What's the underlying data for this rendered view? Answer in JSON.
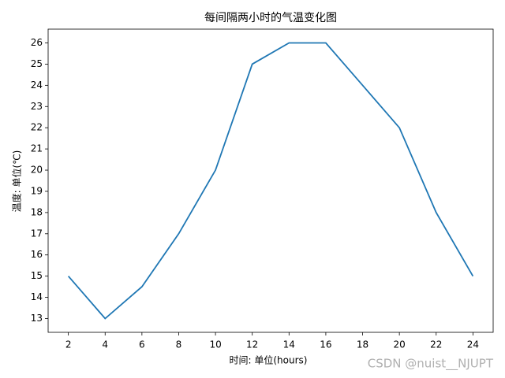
{
  "chart_data": {
    "type": "line",
    "title": "每间隔两小时的气温变化图",
    "xlabel": "时间: 单位(hours)",
    "ylabel": "温度: 单位(℃)",
    "x": [
      2,
      4,
      6,
      8,
      10,
      12,
      14,
      16,
      18,
      20,
      22,
      24
    ],
    "series": [
      {
        "color": "#1f77b4",
        "values": [
          15,
          13,
          14.5,
          17,
          20,
          25,
          26,
          26,
          24,
          22,
          18,
          15
        ]
      }
    ],
    "xlim": [
      0.9,
      25.1
    ],
    "ylim": [
      12.35,
      26.65
    ],
    "xticks": [
      2,
      4,
      6,
      8,
      10,
      12,
      14,
      16,
      18,
      20,
      22,
      24
    ],
    "yticks": [
      13,
      14,
      15,
      16,
      17,
      18,
      19,
      20,
      21,
      22,
      23,
      24,
      25,
      26
    ],
    "watermark": "CSDN @nuist__NJUPT"
  }
}
